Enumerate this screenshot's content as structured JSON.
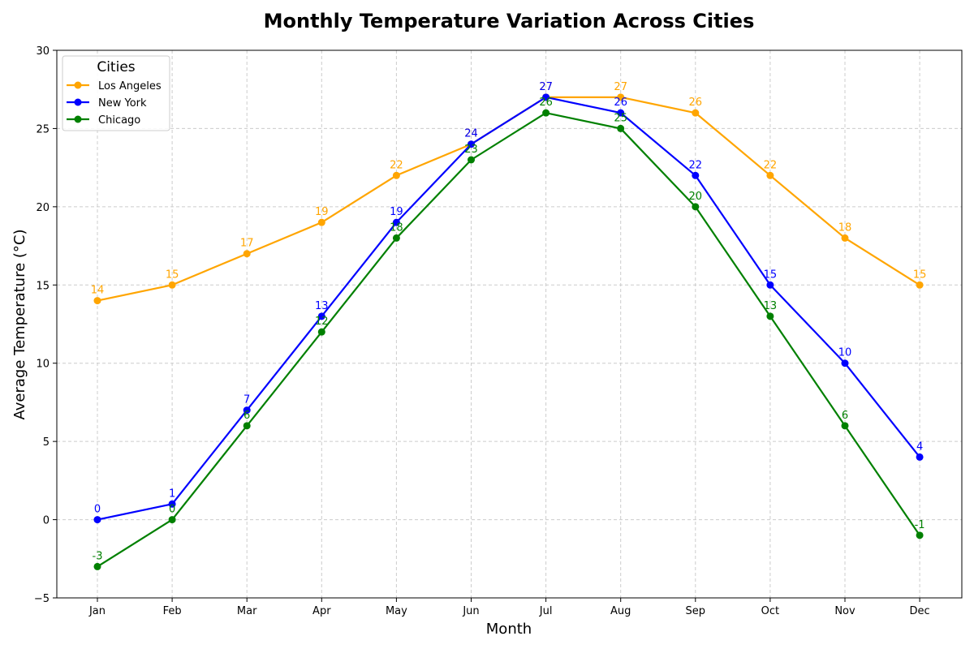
{
  "chart_data": {
    "type": "line",
    "title": "Monthly Temperature Variation Across Cities",
    "xlabel": "Month",
    "ylabel": "Average Temperature (°C)",
    "categories": [
      "Jan",
      "Feb",
      "Mar",
      "Apr",
      "May",
      "Jun",
      "Jul",
      "Aug",
      "Sep",
      "Oct",
      "Nov",
      "Dec"
    ],
    "ylim": [
      -5,
      30
    ],
    "yticks": [
      -5,
      0,
      5,
      10,
      15,
      20,
      25,
      30
    ],
    "ytick_labels": [
      "−5",
      "0",
      "5",
      "10",
      "15",
      "20",
      "25",
      "30"
    ],
    "grid": true,
    "legend": {
      "title": "Cities",
      "placement": "top-left"
    },
    "series": [
      {
        "name": "Los Angeles",
        "color": "#ffa500",
        "values": [
          14,
          15,
          17,
          19,
          22,
          24,
          27,
          27,
          26,
          22,
          18,
          15
        ]
      },
      {
        "name": "New York",
        "color": "#0000ff",
        "values": [
          0,
          1,
          7,
          13,
          19,
          24,
          27,
          26,
          22,
          15,
          10,
          4
        ]
      },
      {
        "name": "Chicago",
        "color": "#008000",
        "values": [
          -3,
          0,
          6,
          12,
          18,
          23,
          26,
          25,
          20,
          13,
          6,
          -1
        ]
      }
    ]
  }
}
